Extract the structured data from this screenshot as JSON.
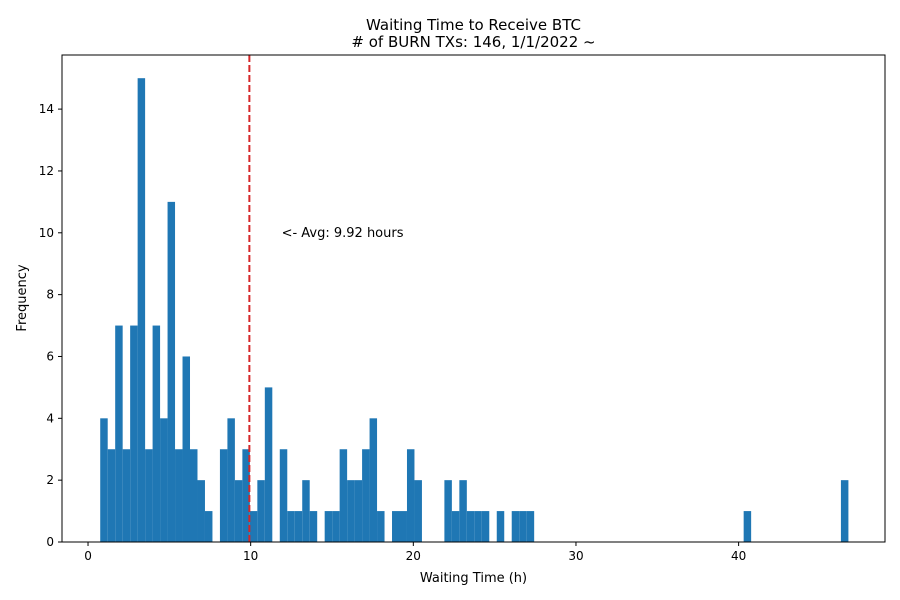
{
  "chart_data": {
    "type": "bar",
    "title": "Waiting Time to Receive BTC",
    "subtitle": "# of BURN TXs: 146, 1/1/2022 ~",
    "xlabel": "Waiting Time (h)",
    "ylabel": "Frequency",
    "xlim": [
      -1.6,
      49.0
    ],
    "ylim": [
      0,
      15.75
    ],
    "xticks": [
      0,
      10,
      20,
      30,
      40
    ],
    "yticks": [
      0,
      2,
      4,
      6,
      8,
      10,
      12,
      14
    ],
    "bar_color": "#1f77b4",
    "bin_width": 0.46,
    "bins": [
      {
        "x": 0.75,
        "count": 4
      },
      {
        "x": 1.21,
        "count": 3
      },
      {
        "x": 1.67,
        "count": 7
      },
      {
        "x": 2.13,
        "count": 3
      },
      {
        "x": 2.59,
        "count": 7
      },
      {
        "x": 3.05,
        "count": 15
      },
      {
        "x": 3.51,
        "count": 3
      },
      {
        "x": 3.97,
        "count": 7
      },
      {
        "x": 4.43,
        "count": 4
      },
      {
        "x": 4.89,
        "count": 11
      },
      {
        "x": 5.35,
        "count": 3
      },
      {
        "x": 5.81,
        "count": 6
      },
      {
        "x": 6.27,
        "count": 3
      },
      {
        "x": 6.73,
        "count": 2
      },
      {
        "x": 7.19,
        "count": 1
      },
      {
        "x": 8.11,
        "count": 3
      },
      {
        "x": 8.57,
        "count": 4
      },
      {
        "x": 9.03,
        "count": 2
      },
      {
        "x": 9.49,
        "count": 3
      },
      {
        "x": 9.95,
        "count": 1
      },
      {
        "x": 10.41,
        "count": 2
      },
      {
        "x": 10.87,
        "count": 5
      },
      {
        "x": 11.79,
        "count": 3
      },
      {
        "x": 12.25,
        "count": 1
      },
      {
        "x": 12.71,
        "count": 1
      },
      {
        "x": 13.17,
        "count": 2
      },
      {
        "x": 13.63,
        "count": 1
      },
      {
        "x": 14.55,
        "count": 1
      },
      {
        "x": 15.01,
        "count": 1
      },
      {
        "x": 15.47,
        "count": 3
      },
      {
        "x": 15.93,
        "count": 2
      },
      {
        "x": 16.39,
        "count": 2
      },
      {
        "x": 16.85,
        "count": 3
      },
      {
        "x": 17.31,
        "count": 4
      },
      {
        "x": 17.77,
        "count": 1
      },
      {
        "x": 18.69,
        "count": 1
      },
      {
        "x": 19.15,
        "count": 1
      },
      {
        "x": 19.61,
        "count": 3
      },
      {
        "x": 20.07,
        "count": 2
      },
      {
        "x": 21.91,
        "count": 2
      },
      {
        "x": 22.37,
        "count": 1
      },
      {
        "x": 22.83,
        "count": 2
      },
      {
        "x": 23.29,
        "count": 1
      },
      {
        "x": 23.75,
        "count": 1
      },
      {
        "x": 24.21,
        "count": 1
      },
      {
        "x": 25.13,
        "count": 1
      },
      {
        "x": 26.05,
        "count": 1
      },
      {
        "x": 26.51,
        "count": 1
      },
      {
        "x": 26.97,
        "count": 1
      },
      {
        "x": 40.31,
        "count": 1
      },
      {
        "x": 46.29,
        "count": 2
      }
    ],
    "average_line": {
      "x": 9.92,
      "color": "#d62728",
      "style": "dashed"
    },
    "annotation": {
      "text": "<- Avg: 9.92 hours",
      "x": 11.9,
      "y": 10
    }
  }
}
